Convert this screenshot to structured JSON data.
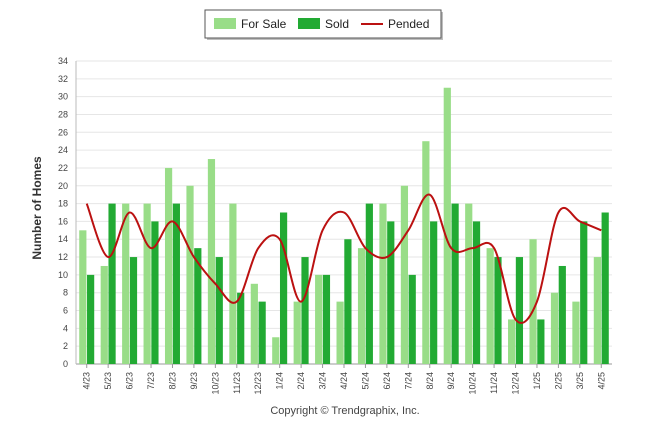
{
  "chart_data": {
    "type": "bar",
    "ylabel": "Number of Homes",
    "ylim": [
      0,
      34
    ],
    "yticks": [
      0,
      2,
      4,
      6,
      8,
      10,
      12,
      14,
      16,
      18,
      20,
      22,
      24,
      26,
      28,
      30,
      32,
      34
    ],
    "categories": [
      "4/23",
      "5/23",
      "6/23",
      "7/23",
      "8/23",
      "9/23",
      "10/23",
      "11/23",
      "12/23",
      "1/24",
      "2/24",
      "3/24",
      "4/24",
      "5/24",
      "6/24",
      "7/24",
      "8/24",
      "9/24",
      "10/24",
      "11/24",
      "12/24",
      "1/25",
      "2/25",
      "3/25",
      "4/25"
    ],
    "series": [
      {
        "name": "For Sale",
        "type": "bar",
        "color": "#99dd88",
        "values": [
          15,
          11,
          18,
          18,
          22,
          20,
          23,
          18,
          9,
          3,
          7,
          10,
          7,
          13,
          18,
          20,
          25,
          31,
          18,
          13,
          5,
          14,
          8,
          7,
          12
        ]
      },
      {
        "name": "Sold",
        "type": "bar",
        "color": "#22aa33",
        "values": [
          10,
          18,
          12,
          16,
          18,
          13,
          12,
          8,
          7,
          17,
          12,
          10,
          14,
          18,
          16,
          10,
          16,
          18,
          16,
          12,
          12,
          5,
          11,
          16,
          17
        ]
      },
      {
        "name": "Pended",
        "type": "line",
        "color": "#bb1111",
        "values": [
          18,
          12,
          17,
          13,
          16,
          12,
          9,
          7,
          13,
          14,
          7,
          15,
          17,
          13,
          12,
          15,
          19,
          13,
          13,
          13,
          5,
          7,
          17,
          16,
          15
        ]
      }
    ],
    "grid": true,
    "legend": "top-center"
  },
  "footer": {
    "copyright": "Copyright © Trendgraphix, Inc."
  }
}
